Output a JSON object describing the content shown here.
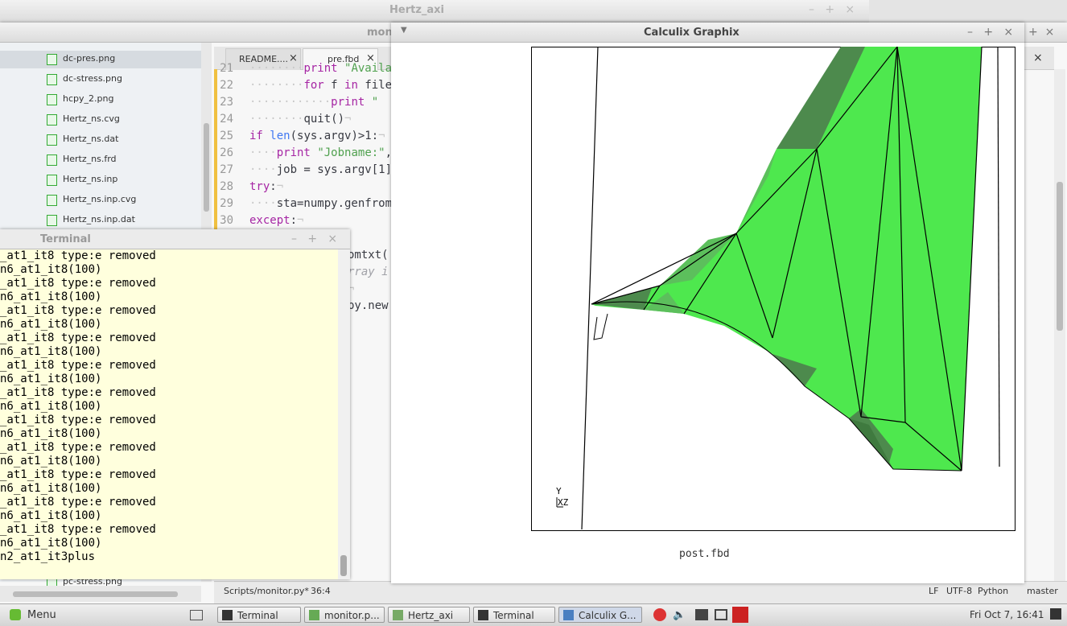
{
  "windows": {
    "back": {
      "title": "Hertz_axi"
    },
    "editor": {
      "title": "mon",
      "files": [
        "dc-pres.png",
        "dc-stress.png",
        "hcpy_2.png",
        "Hertz_ns.cvg",
        "Hertz_ns.dat",
        "Hertz_ns.frd",
        "Hertz_ns.inp",
        "Hertz_ns.inp.cvg",
        "Hertz_ns.inp.dat"
      ],
      "file_last": "pc-stress.png",
      "tabs": [
        "README....",
        "pre.fbd"
      ],
      "code": [
        {
          "num": "21",
          "tokens": [
            {
              "text": "········",
              "color": "#c8c8c8"
            },
            {
              "text": "print",
              "color": "#a626a4"
            },
            {
              "text": " \"Availa",
              "color": "#50a14f"
            }
          ]
        },
        {
          "num": "22",
          "tokens": [
            {
              "text": "········",
              "color": "#c8c8c8"
            },
            {
              "text": "for",
              "color": "#a626a4"
            },
            {
              "text": " f ",
              "color": "#383a42"
            },
            {
              "text": "in",
              "color": "#a626a4"
            },
            {
              "text": " file",
              "color": "#383a42"
            }
          ]
        },
        {
          "num": "23",
          "tokens": [
            {
              "text": "············",
              "color": "#c8c8c8"
            },
            {
              "text": "print",
              "color": "#a626a4"
            },
            {
              "text": " \"",
              "color": "#50a14f"
            }
          ]
        },
        {
          "num": "24",
          "tokens": [
            {
              "text": "········",
              "color": "#c8c8c8"
            },
            {
              "text": "quit()",
              "color": "#383a42"
            },
            {
              "text": "¬",
              "color": "#c8c8c8"
            }
          ]
        },
        {
          "num": "25",
          "tokens": [
            {
              "text": "if",
              "color": "#a626a4"
            },
            {
              "text": " ",
              "color": "#383a42"
            },
            {
              "text": "len",
              "color": "#4078f2"
            },
            {
              "text": "(sys.argv)>1:",
              "color": "#383a42"
            },
            {
              "text": "¬",
              "color": "#c8c8c8"
            }
          ]
        },
        {
          "num": "26",
          "tokens": [
            {
              "text": "····",
              "color": "#c8c8c8"
            },
            {
              "text": "print",
              "color": "#a626a4"
            },
            {
              "text": " ",
              "color": "#383a42"
            },
            {
              "text": "\"Jobname:\"",
              "color": "#50a14f"
            },
            {
              "text": ",",
              "color": "#383a42"
            }
          ]
        },
        {
          "num": "27",
          "tokens": [
            {
              "text": "····",
              "color": "#c8c8c8"
            },
            {
              "text": "job = sys.argv[1]",
              "color": "#383a42"
            }
          ]
        },
        {
          "num": "28",
          "tokens": [
            {
              "text": "try",
              "color": "#a626a4"
            },
            {
              "text": ":",
              "color": "#383a42"
            },
            {
              "text": "¬",
              "color": "#c8c8c8"
            }
          ]
        },
        {
          "num": "29",
          "tokens": [
            {
              "text": "····",
              "color": "#c8c8c8"
            },
            {
              "text": "sta=numpy.genfrom",
              "color": "#383a42"
            }
          ]
        },
        {
          "num": "30",
          "tokens": [
            {
              "text": "except",
              "color": "#a626a4"
            },
            {
              "text": ":",
              "color": "#383a42"
            },
            {
              "text": "¬",
              "color": "#c8c8c8"
            }
          ]
        }
      ],
      "fragments": [
        {
          "text": "omtxt(",
          "color": "#383a42"
        },
        {
          "text": "rray i",
          "color": "#a0a1a7"
        },
        {
          "text": "¬",
          "color": "#c8c8c8"
        },
        {
          "text": "py.new",
          "color": "#383a42"
        }
      ],
      "status": {
        "path": "Scripts/monitor.py*",
        "pos": "36:4",
        "eol": "LF",
        "enc": "UTF-8",
        "lang": "Python",
        "branch": "master"
      }
    },
    "terminal": {
      "title": "Terminal",
      "lines": [
        "_at1_it8 type:e removed",
        "n6_at1_it8(100)",
        "_at1_it8 type:e removed",
        "n6_at1_it8(100)",
        "_at1_it8 type:e removed",
        "n6_at1_it8(100)",
        "_at1_it8 type:e removed",
        "n6_at1_it8(100)",
        "_at1_it8 type:e removed",
        "n6_at1_it8(100)",
        "_at1_it8 type:e removed",
        "n6_at1_it8(100)",
        "_at1_it8 type:e removed",
        "n6_at1_it8(100)",
        "_at1_it8 type:e removed",
        "n6_at1_it8(100)",
        "_at1_it8 type:e removed",
        "n6_at1_it8(100)",
        "_at1_it8 type:e removed",
        "n6_at1_it8(100)",
        "_at1_it8 type:e removed",
        "n6_at1_it8(100)",
        "n2_at1_it3plus"
      ]
    },
    "graphix": {
      "title": "Calculix Graphix",
      "file": "post.fbd",
      "axis_y": "Y",
      "axis_xz": "XZ"
    }
  },
  "taskbar": {
    "menu": "Menu",
    "tasks": [
      "Terminal",
      "monitor.p...",
      "Hertz_axi",
      "Terminal",
      "Calculix G..."
    ],
    "clock": "Fri Oct 7, 16:41"
  }
}
